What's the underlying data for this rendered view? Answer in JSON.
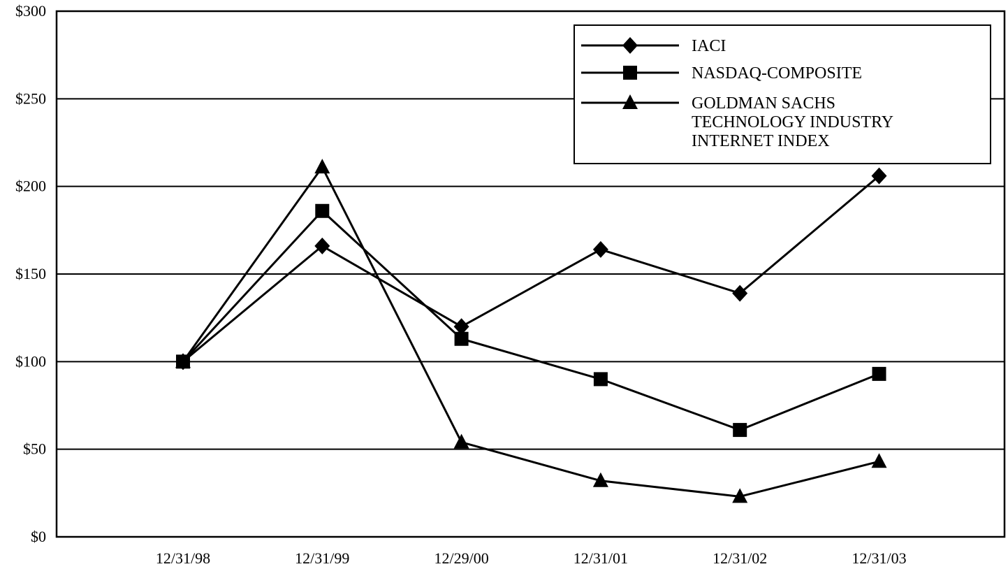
{
  "chart_data": {
    "type": "line",
    "title": "",
    "xlabel": "",
    "ylabel": "",
    "categories": [
      "12/31/98",
      "12/31/99",
      "12/29/00",
      "12/31/01",
      "12/31/02",
      "12/31/03"
    ],
    "ylim": [
      0,
      300
    ],
    "yticks": [
      0,
      50,
      100,
      150,
      200,
      250,
      300
    ],
    "ytick_labels": [
      "$0",
      "$50",
      "$100",
      "$150",
      "$200",
      "$250",
      "$300"
    ],
    "grid": "horizontal",
    "legend_position": "top-right",
    "series": [
      {
        "name": "IACI",
        "marker": "diamond",
        "values": [
          100,
          166,
          120,
          164,
          139,
          206
        ]
      },
      {
        "name": "NASDAQ-COMPOSITE",
        "marker": "square",
        "values": [
          100,
          186,
          113,
          90,
          61,
          93
        ]
      },
      {
        "name": "GOLDMAN SACHS TECHNOLOGY INDUSTRY INTERNET INDEX",
        "label_lines": [
          "GOLDMAN SACHS",
          "TECHNOLOGY INDUSTRY",
          "INTERNET INDEX"
        ],
        "marker": "triangle",
        "values": [
          100,
          211,
          54,
          32,
          23,
          43
        ]
      }
    ],
    "colors": {
      "line": "#000000",
      "background": "#ffffff"
    }
  }
}
